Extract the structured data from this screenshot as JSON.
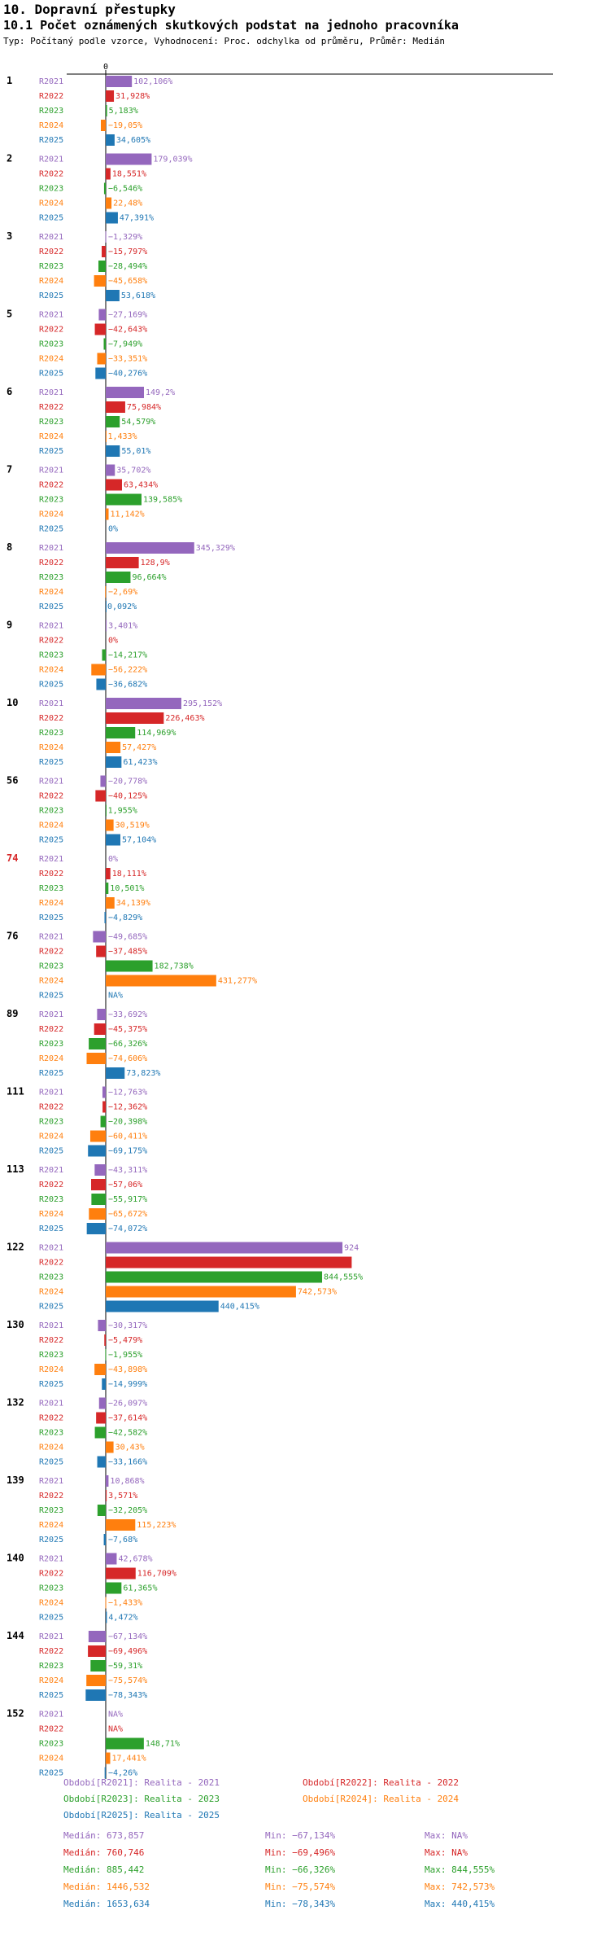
{
  "header": {
    "title": "10. Dopravní přestupky",
    "subtitle": "10.1 Počet oznámených skutkových podstat na jednoho pracovníka",
    "type_line": "Typ: Počítaný podle vzorce, Vyhodnocení: Proc. odchylka od průměru, Průměr: Medián"
  },
  "colors": {
    "R2021": "#9467bd",
    "R2022": "#d62728",
    "R2023": "#2ca02c",
    "R2024": "#ff7f0e",
    "R2025": "#1f77b4",
    "highlight_group": "#d62728"
  },
  "chart_data": {
    "type": "bar",
    "orientation": "horizontal",
    "zero_label": "0",
    "unit": "%",
    "series_names": [
      "R2021",
      "R2022",
      "R2023",
      "R2024",
      "R2025"
    ],
    "highlight_group": "74",
    "groups": [
      {
        "label": "1",
        "values": [
          102.106,
          31.928,
          5.183,
          -19.05,
          34.605
        ],
        "labels": [
          "102,106%",
          "31,928%",
          "5,183%",
          "−19,05%",
          "34,605%"
        ]
      },
      {
        "label": "2",
        "values": [
          179.039,
          18.551,
          -6.546,
          22.48,
          47.391
        ],
        "labels": [
          "179,039%",
          "18,551%",
          "−6,546%",
          "22,48%",
          "47,391%"
        ]
      },
      {
        "label": "3",
        "values": [
          -1.329,
          -15.797,
          -28.494,
          -45.658,
          53.618
        ],
        "labels": [
          "−1,329%",
          "−15,797%",
          "−28,494%",
          "−45,658%",
          "53,618%"
        ]
      },
      {
        "label": "5",
        "values": [
          -27.169,
          -42.643,
          -7.949,
          -33.351,
          -40.276
        ],
        "labels": [
          "−27,169%",
          "−42,643%",
          "−7,949%",
          "−33,351%",
          "−40,276%"
        ]
      },
      {
        "label": "6",
        "values": [
          149.2,
          75.984,
          54.579,
          1.433,
          55.01
        ],
        "labels": [
          "149,2%",
          "75,984%",
          "54,579%",
          "1,433%",
          "55,01%"
        ]
      },
      {
        "label": "7",
        "values": [
          35.702,
          63.434,
          139.585,
          11.142,
          0
        ],
        "labels": [
          "35,702%",
          "63,434%",
          "139,585%",
          "11,142%",
          "0%"
        ]
      },
      {
        "label": "8",
        "values": [
          345.329,
          128.9,
          96.664,
          -2.69,
          0.092
        ],
        "labels": [
          "345,329%",
          "128,9%",
          "96,664%",
          "−2,69%",
          "0,092%"
        ]
      },
      {
        "label": "9",
        "values": [
          3.401,
          0,
          -14.217,
          -56.222,
          -36.682
        ],
        "labels": [
          "3,401%",
          "0%",
          "−14,217%",
          "−56,222%",
          "−36,682%"
        ]
      },
      {
        "label": "10",
        "values": [
          295.152,
          226.463,
          114.969,
          57.427,
          61.423
        ],
        "labels": [
          "295,152%",
          "226,463%",
          "114,969%",
          "57,427%",
          "61,423%"
        ]
      },
      {
        "label": "56",
        "values": [
          -20.778,
          -40.125,
          1.955,
          30.519,
          57.104
        ],
        "labels": [
          "−20,778%",
          "−40,125%",
          "1,955%",
          "30,519%",
          "57,104%"
        ]
      },
      {
        "label": "74",
        "values": [
          0,
          18.111,
          10.501,
          34.139,
          -4.829
        ],
        "labels": [
          "0%",
          "18,111%",
          "10,501%",
          "34,139%",
          "−4,829%"
        ]
      },
      {
        "label": "76",
        "values": [
          -49.685,
          -37.485,
          182.738,
          431.277,
          null
        ],
        "labels": [
          "−49,685%",
          "−37,485%",
          "182,738%",
          "431,277%",
          "NA%"
        ]
      },
      {
        "label": "89",
        "values": [
          -33.692,
          -45.375,
          -66.326,
          -74.606,
          73.823
        ],
        "labels": [
          "−33,692%",
          "−45,375%",
          "−66,326%",
          "−74,606%",
          "73,823%"
        ]
      },
      {
        "label": "111",
        "values": [
          -12.763,
          -12.362,
          -20.398,
          -60.411,
          -69.175
        ],
        "labels": [
          "−12,763%",
          "−12,362%",
          "−20,398%",
          "−60,411%",
          "−69,175%"
        ]
      },
      {
        "label": "113",
        "values": [
          -43.311,
          -57.06,
          -55.917,
          -65.672,
          -74.072
        ],
        "labels": [
          "−43,311%",
          "−57,06%",
          "−55,917%",
          "−65,672%",
          "−74,072%"
        ]
      },
      {
        "label": "122",
        "values": [
          924,
          960,
          844.555,
          742.573,
          440.415
        ],
        "labels": [
          "924",
          "",
          "844,555%",
          "742,573%",
          "440,415%"
        ]
      },
      {
        "label": "130",
        "values": [
          -30.317,
          -5.479,
          -1.955,
          -43.898,
          -14.999
        ],
        "labels": [
          "−30,317%",
          "−5,479%",
          "−1,955%",
          "−43,898%",
          "−14,999%"
        ]
      },
      {
        "label": "132",
        "values": [
          -26.097,
          -37.614,
          -42.582,
          30.43,
          -33.166
        ],
        "labels": [
          "−26,097%",
          "−37,614%",
          "−42,582%",
          "30,43%",
          "−33,166%"
        ]
      },
      {
        "label": "139",
        "values": [
          10.868,
          3.571,
          -32.205,
          115.223,
          -7.68
        ],
        "labels": [
          "10,868%",
          "3,571%",
          "−32,205%",
          "115,223%",
          "−7,68%"
        ]
      },
      {
        "label": "140",
        "values": [
          42.678,
          116.709,
          61.365,
          -1.433,
          4.472
        ],
        "labels": [
          "42,678%",
          "116,709%",
          "61,365%",
          "−1,433%",
          "4,472%"
        ]
      },
      {
        "label": "144",
        "values": [
          -67.134,
          -69.496,
          -59.31,
          -75.574,
          -78.343
        ],
        "labels": [
          "−67,134%",
          "−69,496%",
          "−59,31%",
          "−75,574%",
          "−78,343%"
        ]
      },
      {
        "label": "152",
        "values": [
          null,
          null,
          148.71,
          17.441,
          -4.26
        ],
        "labels": [
          "NA%",
          "NA%",
          "148,71%",
          "17,441%",
          "−4,26%"
        ]
      }
    ]
  },
  "legend": {
    "series": [
      {
        "key": "R2021",
        "text": "Období[R2021]: Realita - 2021"
      },
      {
        "key": "R2022",
        "text": "Období[R2022]: Realita - 2022"
      },
      {
        "key": "R2023",
        "text": "Období[R2023]: Realita - 2023"
      },
      {
        "key": "R2024",
        "text": "Období[R2024]: Realita - 2024"
      },
      {
        "key": "R2025",
        "text": "Období[R2025]: Realita - 2025"
      }
    ],
    "stats": [
      {
        "key": "R2021",
        "median": "Medián: 673,857",
        "min": "Min: −67,134%",
        "max": "Max: NA%"
      },
      {
        "key": "R2022",
        "median": "Medián: 760,746",
        "min": "Min: −69,496%",
        "max": "Max: NA%"
      },
      {
        "key": "R2023",
        "median": "Medián: 885,442",
        "min": "Min: −66,326%",
        "max": "Max: 844,555%"
      },
      {
        "key": "R2024",
        "median": "Medián: 1446,532",
        "min": "Min: −75,574%",
        "max": "Max: 742,573%"
      },
      {
        "key": "R2025",
        "median": "Medián: 1653,634",
        "min": "Min: −78,343%",
        "max": "Max: 440,415%"
      }
    ]
  }
}
